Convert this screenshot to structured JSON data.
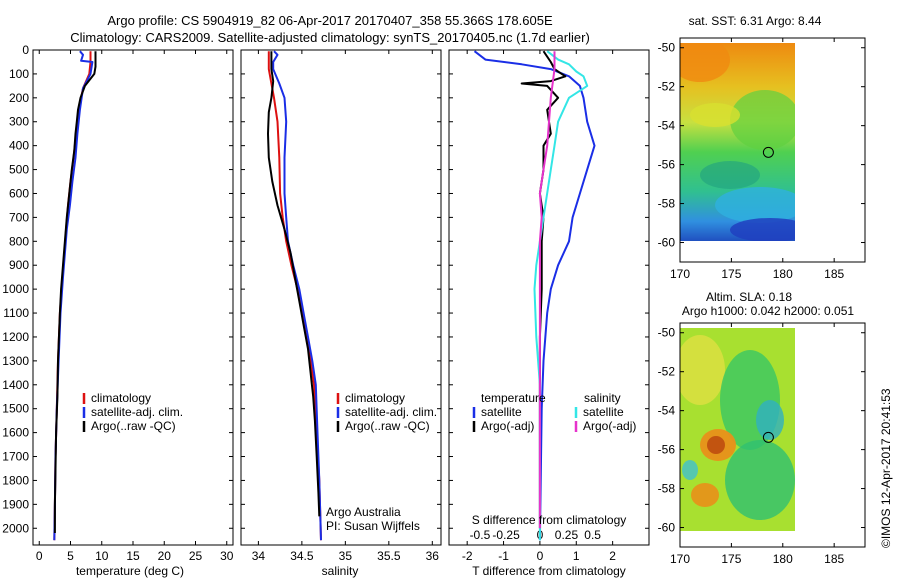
{
  "header": {
    "title_line1": "Argo profile: CS 5904919_82 06-Apr-2017 20170407_358 55.366S 178.605E",
    "title_line2": "Climatology: CARS2009. Satellite-adjusted climatology: synTS_20170405.nc (1.7d earlier)"
  },
  "colors": {
    "climatology": "#dd1111",
    "satellite": "#1a2ee6",
    "argo": "#000000",
    "sal_satellite": "#33e6e6",
    "sal_argo": "#e633cc"
  },
  "chart_data": [
    {
      "type": "line",
      "id": "temperature",
      "xlabel": "temperature (deg C)",
      "ylabel": "",
      "xlim": [
        -1,
        31
      ],
      "ylim": [
        2070,
        0
      ],
      "xticks": [
        "0",
        "5",
        "10",
        "15",
        "20",
        "25",
        "30"
      ],
      "xtick_values": [
        0,
        5,
        10,
        15,
        20,
        25,
        30
      ],
      "yticks": [
        "0",
        "100",
        "200",
        "300",
        "400",
        "500",
        "600",
        "700",
        "800",
        "900",
        "1000",
        "1100",
        "1200",
        "1300",
        "1400",
        "1500",
        "1600",
        "1700",
        "1800",
        "1900",
        "2000"
      ],
      "legend": [
        "climatology",
        "satellite-adj. clim.",
        "Argo(..raw -QC)"
      ],
      "legend_position": "middle-center",
      "series": [
        {
          "name": "climatology",
          "color_key": "climatology",
          "points": [
            [
              8.2,
              5
            ],
            [
              8.2,
              50
            ],
            [
              8.0,
              100
            ],
            [
              7.0,
              160
            ],
            [
              6.3,
              250
            ],
            [
              5.9,
              350
            ],
            [
              5.5,
              450
            ],
            [
              5.0,
              550
            ],
            [
              4.6,
              650
            ],
            [
              4.3,
              750
            ],
            [
              4.0,
              850
            ],
            [
              3.7,
              950
            ],
            [
              3.3,
              1100
            ],
            [
              3.0,
              1300
            ],
            [
              2.8,
              1500
            ],
            [
              2.6,
              1700
            ],
            [
              2.5,
              1900
            ],
            [
              2.4,
              2050
            ]
          ]
        },
        {
          "name": "satellite-adj. clim.",
          "color_key": "satellite",
          "points": [
            [
              6.5,
              5
            ],
            [
              7.0,
              20
            ],
            [
              6.7,
              45
            ],
            [
              8.5,
              50
            ],
            [
              8.2,
              100
            ],
            [
              7.0,
              160
            ],
            [
              6.5,
              250
            ],
            [
              6.1,
              350
            ],
            [
              5.8,
              450
            ],
            [
              5.3,
              550
            ],
            [
              4.9,
              650
            ],
            [
              4.4,
              750
            ],
            [
              4.1,
              850
            ],
            [
              3.8,
              950
            ],
            [
              3.4,
              1100
            ],
            [
              3.1,
              1300
            ],
            [
              2.8,
              1500
            ],
            [
              2.6,
              1700
            ],
            [
              2.5,
              1900
            ],
            [
              2.4,
              2050
            ]
          ]
        },
        {
          "name": "Argo(..raw -QC)",
          "color_key": "argo",
          "points": [
            [
              9.0,
              5
            ],
            [
              9.0,
              70
            ],
            [
              8.8,
              100
            ],
            [
              7.3,
              150
            ],
            [
              6.6,
              200
            ],
            [
              6.2,
              250
            ],
            [
              6.0,
              300
            ],
            [
              5.8,
              350
            ],
            [
              5.6,
              420
            ],
            [
              5.2,
              500
            ],
            [
              4.8,
              600
            ],
            [
              4.4,
              700
            ],
            [
              4.1,
              800
            ],
            [
              3.8,
              900
            ],
            [
              3.5,
              1000
            ],
            [
              3.3,
              1100
            ],
            [
              3.0,
              1300
            ],
            [
              2.9,
              1450
            ],
            [
              2.7,
              1600
            ],
            [
              2.6,
              1750
            ],
            [
              2.5,
              1900
            ],
            [
              2.5,
              2020
            ]
          ]
        }
      ]
    },
    {
      "type": "line",
      "id": "salinity",
      "xlabel": "salinity",
      "ylabel": "",
      "xlim": [
        33.8,
        36.1
      ],
      "ylim": [
        2070,
        0
      ],
      "xticks": [
        "34",
        "34.5",
        "35",
        "35.5",
        "36"
      ],
      "xtick_values": [
        34,
        34.5,
        35,
        35.5,
        36
      ],
      "legend": [
        "climatology",
        "satellite-adj. clim.",
        "Argo(..raw -QC)"
      ],
      "legend_position": "middle-right",
      "annotation_lines": [
        "Argo Australia",
        "PI: Susan Wijffels"
      ],
      "series": [
        {
          "name": "climatology",
          "color_key": "climatology",
          "points": [
            [
              34.12,
              5
            ],
            [
              34.12,
              80
            ],
            [
              34.15,
              140
            ],
            [
              34.18,
              200
            ],
            [
              34.22,
              300
            ],
            [
              34.24,
              450
            ],
            [
              34.25,
              600
            ],
            [
              34.28,
              700
            ],
            [
              34.32,
              800
            ],
            [
              34.38,
              900
            ],
            [
              34.45,
              1000
            ],
            [
              34.5,
              1100
            ],
            [
              34.55,
              1200
            ],
            [
              34.6,
              1300
            ],
            [
              34.64,
              1400
            ],
            [
              34.67,
              1600
            ],
            [
              34.7,
              1800
            ],
            [
              34.72,
              2050
            ]
          ]
        },
        {
          "name": "satellite-adj. clim.",
          "color_key": "satellite",
          "points": [
            [
              34.18,
              5
            ],
            [
              34.22,
              20
            ],
            [
              34.17,
              50
            ],
            [
              34.17,
              80
            ],
            [
              34.24,
              140
            ],
            [
              34.3,
              200
            ],
            [
              34.32,
              300
            ],
            [
              34.3,
              450
            ],
            [
              34.3,
              600
            ],
            [
              34.32,
              700
            ],
            [
              34.34,
              800
            ],
            [
              34.4,
              900
            ],
            [
              34.47,
              1000
            ],
            [
              34.52,
              1100
            ],
            [
              34.57,
              1200
            ],
            [
              34.62,
              1300
            ],
            [
              34.66,
              1400
            ],
            [
              34.68,
              1600
            ],
            [
              34.7,
              1800
            ],
            [
              34.72,
              2050
            ]
          ]
        },
        {
          "name": "Argo(..raw -QC)",
          "color_key": "argo",
          "points": [
            [
              34.15,
              5
            ],
            [
              34.15,
              80
            ],
            [
              34.17,
              130
            ],
            [
              34.15,
              200
            ],
            [
              34.12,
              260
            ],
            [
              34.11,
              350
            ],
            [
              34.12,
              450
            ],
            [
              34.16,
              550
            ],
            [
              34.22,
              650
            ],
            [
              34.3,
              750
            ],
            [
              34.37,
              850
            ],
            [
              34.42,
              950
            ],
            [
              34.47,
              1050
            ],
            [
              34.52,
              1150
            ],
            [
              34.57,
              1250
            ],
            [
              34.6,
              1350
            ],
            [
              34.63,
              1450
            ],
            [
              34.65,
              1550
            ],
            [
              34.67,
              1700
            ],
            [
              34.69,
              1850
            ],
            [
              34.7,
              1950
            ]
          ]
        }
      ]
    },
    {
      "type": "line",
      "id": "differences",
      "xlabel": "T difference from climatology",
      "xlabel_top": "S difference from climatology",
      "xlim": [
        -2.5,
        3.0
      ],
      "ylim": [
        2070,
        0
      ],
      "xticks_T": [
        "-2",
        "-1",
        "0",
        "1",
        "2"
      ],
      "xtick_values_T": [
        -2,
        -1,
        0,
        1,
        2
      ],
      "xticks_S": [
        "-0.5",
        "-0.25",
        "0",
        "0.25",
        "0.5"
      ],
      "xtick_positions_S": [
        -1.65,
        -0.93,
        0,
        0.73,
        1.45
      ],
      "legend_temperature_title": "temperature",
      "legend_salinity_title": "salinity",
      "legend_temperature": [
        "satellite",
        "Argo(-adj)"
      ],
      "legend_salinity": [
        "satellite",
        "Argo(-adj)"
      ],
      "series": [
        {
          "name": "temperature satellite",
          "color_key": "satellite",
          "points": [
            [
              -1.8,
              5
            ],
            [
              -1.5,
              40
            ],
            [
              -0.5,
              60
            ],
            [
              0.3,
              80
            ],
            [
              0.8,
              110
            ],
            [
              1.1,
              150
            ],
            [
              1.2,
              200
            ],
            [
              1.3,
              300
            ],
            [
              1.5,
              400
            ],
            [
              1.3,
              500
            ],
            [
              1.1,
              600
            ],
            [
              0.9,
              700
            ],
            [
              0.8,
              800
            ],
            [
              0.5,
              900
            ],
            [
              0.3,
              1000
            ],
            [
              0.2,
              1100
            ],
            [
              0.1,
              1300
            ],
            [
              0.05,
              1500
            ],
            [
              0.0,
              2050
            ]
          ]
        },
        {
          "name": "temperature Argo(-adj)",
          "color_key": "argo",
          "points": [
            [
              0.1,
              5
            ],
            [
              0.3,
              50
            ],
            [
              0.4,
              80
            ],
            [
              0.6,
              100
            ],
            [
              0.7,
              110
            ],
            [
              0.3,
              130
            ],
            [
              -0.5,
              140
            ],
            [
              0.2,
              150
            ],
            [
              0.5,
              200
            ],
            [
              0.2,
              250
            ],
            [
              0.3,
              350
            ],
            [
              0.1,
              400
            ],
            [
              0.1,
              500
            ],
            [
              0.0,
              600
            ],
            [
              0.1,
              700
            ],
            [
              0.05,
              800
            ],
            [
              0.05,
              1000
            ],
            [
              0.0,
              1200
            ],
            [
              0.0,
              1500
            ],
            [
              0.0,
              2000
            ]
          ]
        },
        {
          "name": "salinity satellite",
          "color_key": "sal_satellite",
          "points": [
            [
              0.2,
              5
            ],
            [
              0.5,
              40
            ],
            [
              0.8,
              60
            ],
            [
              1.0,
              90
            ],
            [
              1.2,
              110
            ],
            [
              1.3,
              150
            ],
            [
              0.8,
              200
            ],
            [
              0.5,
              300
            ],
            [
              0.4,
              400
            ],
            [
              0.3,
              500
            ],
            [
              0.1,
              700
            ],
            [
              0.0,
              800
            ],
            [
              -0.1,
              900
            ],
            [
              -0.15,
              1000
            ],
            [
              -0.1,
              1200
            ],
            [
              0.0,
              1400
            ],
            [
              0.0,
              2050
            ]
          ]
        },
        {
          "name": "salinity Argo(-adj)",
          "color_key": "sal_argo",
          "points": [
            [
              0.4,
              5
            ],
            [
              0.4,
              80
            ],
            [
              0.3,
              200
            ],
            [
              0.25,
              300
            ],
            [
              0.2,
              400
            ],
            [
              0.1,
              500
            ],
            [
              0.0,
              600
            ],
            [
              0.05,
              700
            ],
            [
              0.0,
              800
            ],
            [
              0.0,
              1000
            ],
            [
              0.0,
              1500
            ],
            [
              0.0,
              2000
            ]
          ]
        }
      ]
    },
    {
      "type": "heatmap",
      "id": "sst_map",
      "title": "sat. SST: 6.31 Argo: 8.44",
      "xlim": [
        170,
        188
      ],
      "ylim": [
        -61,
        -49.5
      ],
      "xticks": [
        "170",
        "175",
        "180",
        "185"
      ],
      "xtick_values": [
        170,
        175,
        180,
        185
      ],
      "yticks": [
        "-50",
        "-52",
        "-54",
        "-56",
        "-58",
        "-60"
      ],
      "ytick_values": [
        -50,
        -52,
        -54,
        -56,
        -58,
        -60
      ],
      "data_extent_lon": [
        170,
        180
      ],
      "data_extent_lat": [
        -60,
        -49.5
      ],
      "marker": {
        "lon": 178.6,
        "lat": -55.37
      }
    },
    {
      "type": "heatmap",
      "id": "sla_map",
      "title_line1": "Altim. SLA: 0.18",
      "title_line2": "Argo h1000: 0.042 h2000: 0.051",
      "xlim": [
        170,
        188
      ],
      "ylim": [
        -61,
        -49.5
      ],
      "xticks": [
        "170",
        "175",
        "180",
        "185"
      ],
      "xtick_values": [
        170,
        175,
        180,
        185
      ],
      "yticks": [
        "-50",
        "-52",
        "-54",
        "-56",
        "-58",
        "-60"
      ],
      "ytick_values": [
        -50,
        -52,
        -54,
        -56,
        -58,
        -60
      ],
      "data_extent_lon": [
        170,
        180
      ],
      "data_extent_lat": [
        -60,
        -49.5
      ],
      "marker": {
        "lon": 178.6,
        "lat": -55.37
      }
    }
  ],
  "footer": {
    "stamp": "©IMOS 12-Apr-2017 20:41:53"
  }
}
